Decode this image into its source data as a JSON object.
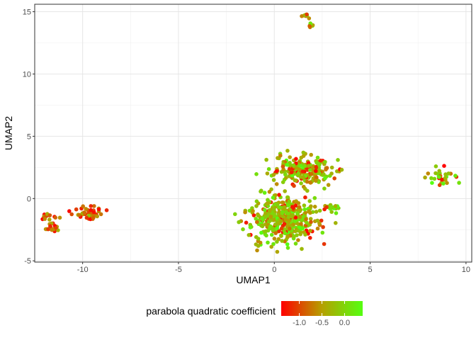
{
  "chart_data": {
    "type": "scatter",
    "title": "",
    "xlabel": "UMAP1",
    "ylabel": "UMAP2",
    "xlim": [
      -12.5,
      10.3
    ],
    "ylim": [
      -5.1,
      15.6
    ],
    "x_ticks": [
      -10,
      -5,
      0,
      5,
      10
    ],
    "x_tick_labels": [
      "-10",
      "-5",
      "0",
      "5",
      "10"
    ],
    "y_ticks": [
      -5,
      0,
      5,
      10,
      15
    ],
    "y_tick_labels": [
      "-5",
      "0",
      "5",
      "10",
      "15"
    ],
    "grid": true,
    "legend": {
      "title": "parabola quadratic coefficient",
      "placement": "bottom",
      "type": "colorbar",
      "range": [
        -1.4,
        0.4
      ],
      "ticks": [
        -1.0,
        -0.5,
        0.0
      ],
      "tick_labels": [
        "-1.0",
        "-0.5",
        "0.0"
      ],
      "low_color": "#ff0000",
      "mid_color": "#b5a000",
      "high_color": "#55ff11"
    },
    "clusters": [
      {
        "center": [
          -11.8,
          -1.4
        ],
        "spread": [
          0.22,
          0.18
        ],
        "n": 14,
        "color_mean": -0.7
      },
      {
        "center": [
          -11.6,
          -2.3
        ],
        "spread": [
          0.22,
          0.18
        ],
        "n": 16,
        "color_mean": -0.7
      },
      {
        "center": [
          -9.8,
          -1.2
        ],
        "spread": [
          0.45,
          0.25
        ],
        "n": 45,
        "color_mean": -0.8
      },
      {
        "center": [
          1.6,
          14.7
        ],
        "spread": [
          0.15,
          0.12
        ],
        "n": 10,
        "color_mean": -0.5
      },
      {
        "center": [
          1.9,
          14.0
        ],
        "spread": [
          0.12,
          0.12
        ],
        "n": 8,
        "color_mean": -0.4
      },
      {
        "center": [
          1.6,
          2.3
        ],
        "spread": [
          0.7,
          0.55
        ],
        "n": 220,
        "color_mean": -0.3
      },
      {
        "center": [
          0.5,
          -1.6
        ],
        "spread": [
          0.85,
          1.0
        ],
        "n": 420,
        "color_mean": -0.2
      },
      {
        "center": [
          2.9,
          -0.7
        ],
        "spread": [
          0.3,
          0.15
        ],
        "n": 18,
        "color_mean": -0.1
      },
      {
        "center": [
          8.8,
          1.8
        ],
        "spread": [
          0.35,
          0.35
        ],
        "n": 35,
        "color_mean": -0.1
      }
    ]
  }
}
